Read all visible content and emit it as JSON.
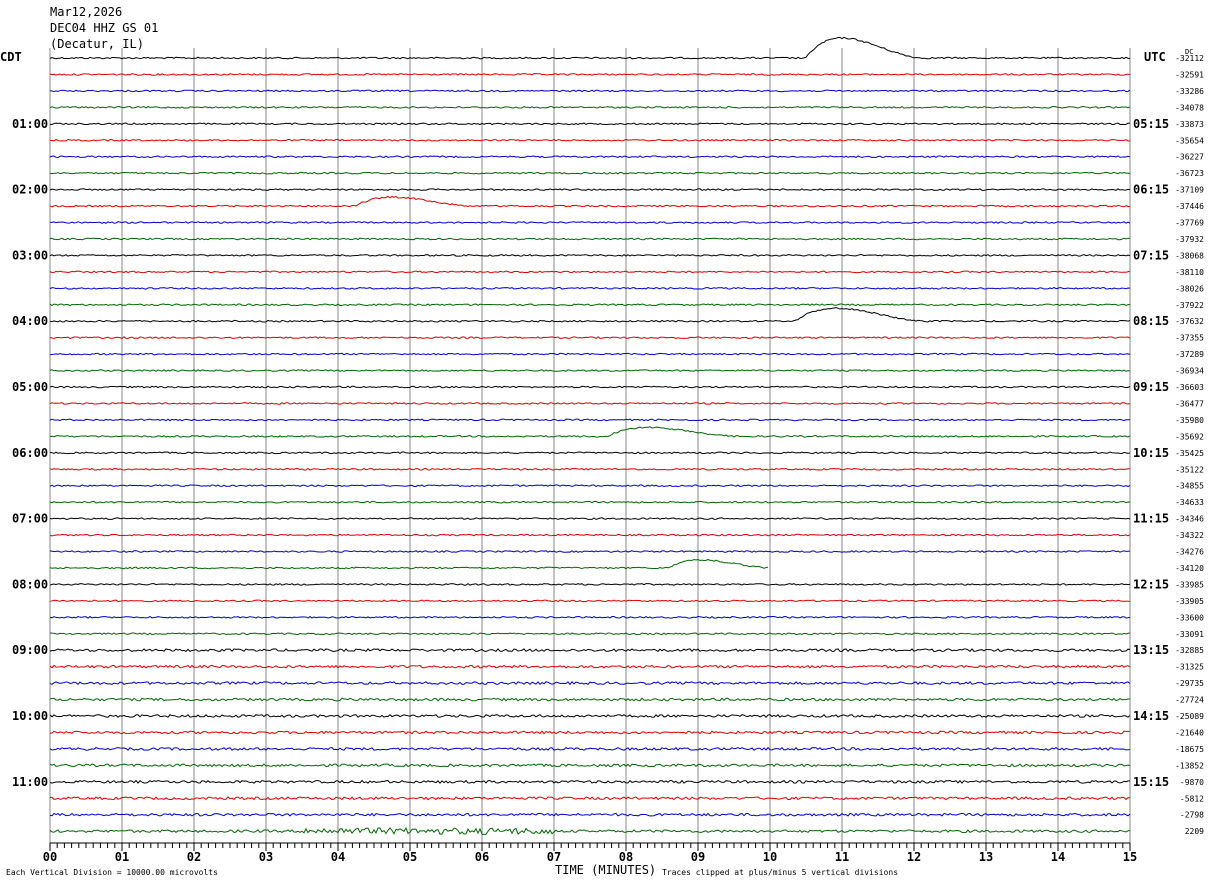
{
  "header": {
    "date": "Mar12,2026",
    "station": "DEC04 HHZ GS 01",
    "location": "(Decatur, IL)"
  },
  "left_timezone": "CDT",
  "right_timezone": "UTC",
  "dc_label": "DC",
  "footer": {
    "scale_note": "Each Vertical Division = 10000.00 microvolts",
    "xlabel": "TIME (MINUTES)",
    "clip_note": "Traces clipped at plus/minus 5 vertical divisions"
  },
  "colors": {
    "black": "#000000",
    "red": "#dd0000",
    "blue": "#0000cc",
    "green": "#006600",
    "grid": "#888888"
  },
  "chart_data": {
    "type": "line",
    "x_range": [
      0,
      15
    ],
    "x_ticks": [
      "00",
      "01",
      "02",
      "03",
      "04",
      "05",
      "06",
      "07",
      "08",
      "09",
      "10",
      "11",
      "12",
      "13",
      "14",
      "15"
    ],
    "trace_color_cycle": [
      "black",
      "red",
      "blue",
      "green"
    ],
    "rows_count": 48,
    "left_hour_labels": [
      "01:00",
      "02:00",
      "03:00",
      "04:00",
      "05:00",
      "06:00",
      "07:00",
      "08:00",
      "09:00",
      "10:00",
      "11:00"
    ],
    "right_hour_labels": [
      "05:15",
      "06:15",
      "07:15",
      "08:15",
      "09:15",
      "10:15",
      "11:15",
      "12:15",
      "13:15",
      "14:15",
      "15:15"
    ],
    "dc_offsets": [
      "-32112",
      "-32591",
      "-33286",
      "-34078",
      "-33873",
      "-35654",
      "-36227",
      "-36723",
      "-37109",
      "-37446",
      "-37769",
      "-37932",
      "-38068",
      "-38110",
      "-38026",
      "-37922",
      "-37632",
      "-37355",
      "-37289",
      "-36934",
      "-36603",
      "-36477",
      "-35980",
      "-35692",
      "-35425",
      "-35122",
      "-34855",
      "-34633",
      "-34346",
      "-34322",
      "-34276",
      "-34120",
      "-33985",
      "-33905",
      "-33600",
      "-33091",
      "-32885",
      "-31325",
      "-29735",
      "-27724",
      "-25089",
      "-21640",
      "-18675",
      "-13852",
      "-9870",
      "-5812",
      "-2798",
      "2209"
    ],
    "events": [
      {
        "row": 0,
        "start_min": 10.5,
        "amplitude": 20,
        "duration_min": 1.6
      },
      {
        "row": 9,
        "start_min": 4.25,
        "amplitude": 9,
        "duration_min": 1.6
      },
      {
        "row": 16,
        "start_min": 10.35,
        "amplitude": 13,
        "duration_min": 1.8
      },
      {
        "row": 23,
        "start_min": 7.75,
        "amplitude": 9,
        "duration_min": 1.8
      },
      {
        "row": 31,
        "start_min": 8.6,
        "amplitude": 8,
        "duration_min": 1.4
      }
    ]
  }
}
